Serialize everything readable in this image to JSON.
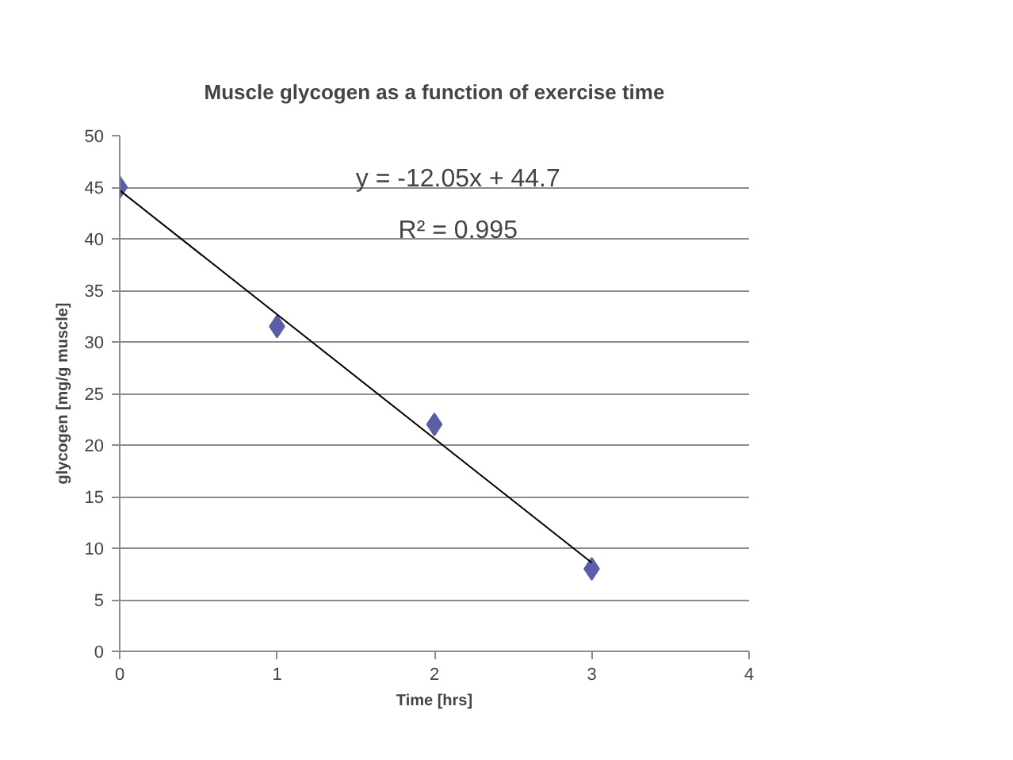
{
  "chart_data": {
    "type": "scatter",
    "title": "Muscle glycogen as a function of exercise time",
    "xlabel": "Time [hrs]",
    "ylabel": "glycogen [mg/g muscle]",
    "x": [
      0,
      1,
      2,
      3
    ],
    "series": [
      {
        "color": "#5b5ea6",
        "marker": "diamond",
        "values": [
          45,
          31.5,
          22,
          8
        ]
      },
      {
        "type": "line",
        "color": "#000000",
        "x": [
          0,
          3
        ],
        "values": [
          44.7,
          8.6
        ],
        "line_style": "solid"
      }
    ],
    "annotations": [
      "y = -12.05x + 44.7",
      "R² = 0.995"
    ],
    "xlim": [
      0,
      4
    ],
    "xticks": [
      0,
      1,
      2,
      3,
      4
    ],
    "ylim": [
      0,
      50
    ],
    "yticks": [
      0,
      5,
      10,
      15,
      20,
      25,
      30,
      35,
      40,
      45,
      50
    ],
    "grid": "y"
  }
}
